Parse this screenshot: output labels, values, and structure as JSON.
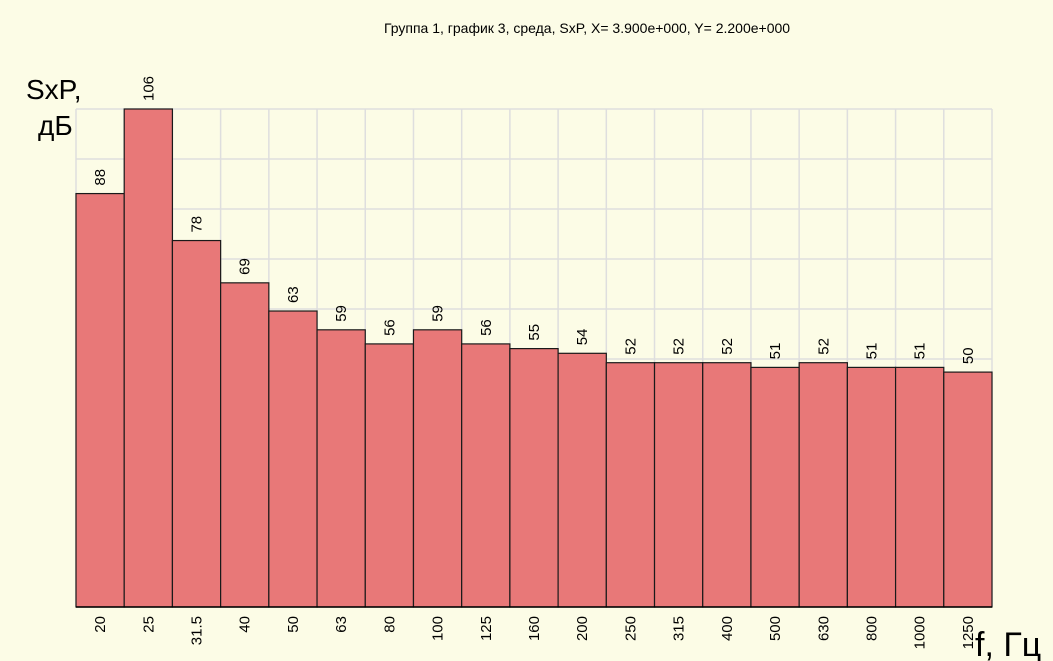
{
  "chart_data": {
    "type": "bar",
    "title": "Группа  1, график  3, среда, SxP, X= 3.900e+000, Y= 2.200e+000",
    "ylabel_line1": "SxP,",
    "ylabel_line2": "дБ",
    "xlabel": "f, Гц",
    "categories": [
      "20",
      "25",
      "31.5",
      "40",
      "50",
      "63",
      "80",
      "100",
      "125",
      "160",
      "200",
      "250",
      "315",
      "400",
      "500",
      "630",
      "800",
      "1000",
      "1250"
    ],
    "values": [
      88,
      106,
      78,
      69,
      63,
      59,
      56,
      59,
      56,
      55,
      54,
      52,
      52,
      52,
      51,
      52,
      51,
      51,
      50
    ],
    "ylim": [
      0,
      106
    ],
    "grid": true,
    "colors": {
      "bar": "#e87878",
      "background": "#fcfce6",
      "grid": "#dedede"
    }
  }
}
